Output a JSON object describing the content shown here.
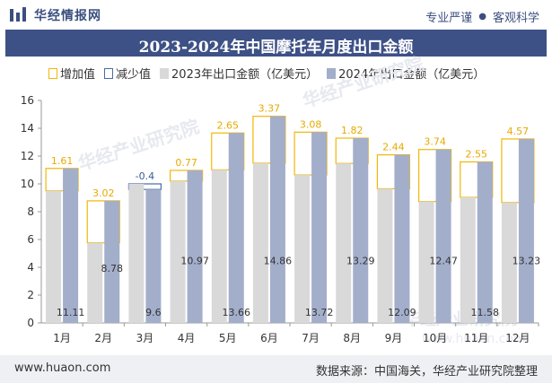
{
  "header": {
    "brand_name": "华经情报网",
    "slogan_left": "专业严谨",
    "slogan_right": "客观科学"
  },
  "colors": {
    "title_bar": "#3d5186",
    "increase": "#f2b705",
    "decrease": "#4a6aa8",
    "series_2023": "#d9d9d9",
    "series_2024": "#a3aecb"
  },
  "legend": {
    "increase": "增加值",
    "decrease": "减少值",
    "s2023": "2023年出口金额（亿美元）",
    "s2024": "2024年出口金额（亿美元）"
  },
  "watermarks": [
    "华经产业研究院",
    "www.huaon.com"
  ],
  "chart_data": {
    "type": "bar",
    "title": "2023-2024年中国摩托车月度出口金额",
    "categories": [
      "1月",
      "2月",
      "3月",
      "4月",
      "5月",
      "6月",
      "7月",
      "8月",
      "9月",
      "10月",
      "11月",
      "12月"
    ],
    "series": [
      {
        "name": "2023年出口金额（亿美元）",
        "values": [
          9.5,
          5.76,
          10.0,
          10.2,
          11.01,
          11.49,
          10.64,
          11.47,
          9.65,
          8.73,
          9.03,
          8.66
        ]
      },
      {
        "name": "2024年出口金额（亿美元）",
        "values": [
          11.11,
          8.78,
          9.6,
          10.97,
          13.66,
          14.86,
          13.72,
          13.29,
          12.09,
          12.47,
          11.58,
          13.23
        ]
      }
    ],
    "change_labels": [
      "1.61",
      "3.02",
      "-0.4",
      "0.77",
      "2.65",
      "3.37",
      "3.08",
      "1.82",
      "2.44",
      "3.74",
      "2.55",
      "4.57"
    ],
    "ylim": [
      0,
      16
    ],
    "yticks": [
      0,
      2,
      4,
      6,
      8,
      10,
      12,
      14,
      16
    ],
    "grid": false,
    "legend_position": "top-left"
  },
  "footer": {
    "website": "www.huaon.com",
    "source": "数据来源：中国海关，华经产业研究院整理"
  }
}
